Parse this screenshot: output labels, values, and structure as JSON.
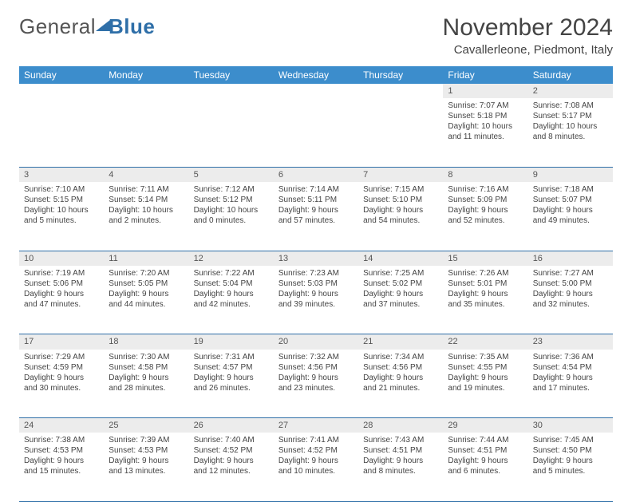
{
  "brand": {
    "part1": "General",
    "part2": "Blue"
  },
  "title": "November 2024",
  "location": "Cavallerleone, Piedmont, Italy",
  "colors": {
    "header_bg": "#3c8dcc",
    "header_text": "#ffffff",
    "daynum_bg": "#ececec",
    "border": "#2f6fa8",
    "text": "#444444",
    "brand_gray": "#555555",
    "brand_blue": "#2f6fa8"
  },
  "fonts": {
    "title_pt": 30,
    "location_pt": 15,
    "header_pt": 12,
    "cell_pt": 10
  },
  "weekdays": [
    "Sunday",
    "Monday",
    "Tuesday",
    "Wednesday",
    "Thursday",
    "Friday",
    "Saturday"
  ],
  "weeks": [
    [
      null,
      null,
      null,
      null,
      null,
      {
        "n": "1",
        "sr": "Sunrise: 7:07 AM",
        "ss": "Sunset: 5:18 PM",
        "dl": "Daylight: 10 hours and 11 minutes."
      },
      {
        "n": "2",
        "sr": "Sunrise: 7:08 AM",
        "ss": "Sunset: 5:17 PM",
        "dl": "Daylight: 10 hours and 8 minutes."
      }
    ],
    [
      {
        "n": "3",
        "sr": "Sunrise: 7:10 AM",
        "ss": "Sunset: 5:15 PM",
        "dl": "Daylight: 10 hours and 5 minutes."
      },
      {
        "n": "4",
        "sr": "Sunrise: 7:11 AM",
        "ss": "Sunset: 5:14 PM",
        "dl": "Daylight: 10 hours and 2 minutes."
      },
      {
        "n": "5",
        "sr": "Sunrise: 7:12 AM",
        "ss": "Sunset: 5:12 PM",
        "dl": "Daylight: 10 hours and 0 minutes."
      },
      {
        "n": "6",
        "sr": "Sunrise: 7:14 AM",
        "ss": "Sunset: 5:11 PM",
        "dl": "Daylight: 9 hours and 57 minutes."
      },
      {
        "n": "7",
        "sr": "Sunrise: 7:15 AM",
        "ss": "Sunset: 5:10 PM",
        "dl": "Daylight: 9 hours and 54 minutes."
      },
      {
        "n": "8",
        "sr": "Sunrise: 7:16 AM",
        "ss": "Sunset: 5:09 PM",
        "dl": "Daylight: 9 hours and 52 minutes."
      },
      {
        "n": "9",
        "sr": "Sunrise: 7:18 AM",
        "ss": "Sunset: 5:07 PM",
        "dl": "Daylight: 9 hours and 49 minutes."
      }
    ],
    [
      {
        "n": "10",
        "sr": "Sunrise: 7:19 AM",
        "ss": "Sunset: 5:06 PM",
        "dl": "Daylight: 9 hours and 47 minutes."
      },
      {
        "n": "11",
        "sr": "Sunrise: 7:20 AM",
        "ss": "Sunset: 5:05 PM",
        "dl": "Daylight: 9 hours and 44 minutes."
      },
      {
        "n": "12",
        "sr": "Sunrise: 7:22 AM",
        "ss": "Sunset: 5:04 PM",
        "dl": "Daylight: 9 hours and 42 minutes."
      },
      {
        "n": "13",
        "sr": "Sunrise: 7:23 AM",
        "ss": "Sunset: 5:03 PM",
        "dl": "Daylight: 9 hours and 39 minutes."
      },
      {
        "n": "14",
        "sr": "Sunrise: 7:25 AM",
        "ss": "Sunset: 5:02 PM",
        "dl": "Daylight: 9 hours and 37 minutes."
      },
      {
        "n": "15",
        "sr": "Sunrise: 7:26 AM",
        "ss": "Sunset: 5:01 PM",
        "dl": "Daylight: 9 hours and 35 minutes."
      },
      {
        "n": "16",
        "sr": "Sunrise: 7:27 AM",
        "ss": "Sunset: 5:00 PM",
        "dl": "Daylight: 9 hours and 32 minutes."
      }
    ],
    [
      {
        "n": "17",
        "sr": "Sunrise: 7:29 AM",
        "ss": "Sunset: 4:59 PM",
        "dl": "Daylight: 9 hours and 30 minutes."
      },
      {
        "n": "18",
        "sr": "Sunrise: 7:30 AM",
        "ss": "Sunset: 4:58 PM",
        "dl": "Daylight: 9 hours and 28 minutes."
      },
      {
        "n": "19",
        "sr": "Sunrise: 7:31 AM",
        "ss": "Sunset: 4:57 PM",
        "dl": "Daylight: 9 hours and 26 minutes."
      },
      {
        "n": "20",
        "sr": "Sunrise: 7:32 AM",
        "ss": "Sunset: 4:56 PM",
        "dl": "Daylight: 9 hours and 23 minutes."
      },
      {
        "n": "21",
        "sr": "Sunrise: 7:34 AM",
        "ss": "Sunset: 4:56 PM",
        "dl": "Daylight: 9 hours and 21 minutes."
      },
      {
        "n": "22",
        "sr": "Sunrise: 7:35 AM",
        "ss": "Sunset: 4:55 PM",
        "dl": "Daylight: 9 hours and 19 minutes."
      },
      {
        "n": "23",
        "sr": "Sunrise: 7:36 AM",
        "ss": "Sunset: 4:54 PM",
        "dl": "Daylight: 9 hours and 17 minutes."
      }
    ],
    [
      {
        "n": "24",
        "sr": "Sunrise: 7:38 AM",
        "ss": "Sunset: 4:53 PM",
        "dl": "Daylight: 9 hours and 15 minutes."
      },
      {
        "n": "25",
        "sr": "Sunrise: 7:39 AM",
        "ss": "Sunset: 4:53 PM",
        "dl": "Daylight: 9 hours and 13 minutes."
      },
      {
        "n": "26",
        "sr": "Sunrise: 7:40 AM",
        "ss": "Sunset: 4:52 PM",
        "dl": "Daylight: 9 hours and 12 minutes."
      },
      {
        "n": "27",
        "sr": "Sunrise: 7:41 AM",
        "ss": "Sunset: 4:52 PM",
        "dl": "Daylight: 9 hours and 10 minutes."
      },
      {
        "n": "28",
        "sr": "Sunrise: 7:43 AM",
        "ss": "Sunset: 4:51 PM",
        "dl": "Daylight: 9 hours and 8 minutes."
      },
      {
        "n": "29",
        "sr": "Sunrise: 7:44 AM",
        "ss": "Sunset: 4:51 PM",
        "dl": "Daylight: 9 hours and 6 minutes."
      },
      {
        "n": "30",
        "sr": "Sunrise: 7:45 AM",
        "ss": "Sunset: 4:50 PM",
        "dl": "Daylight: 9 hours and 5 minutes."
      }
    ]
  ]
}
